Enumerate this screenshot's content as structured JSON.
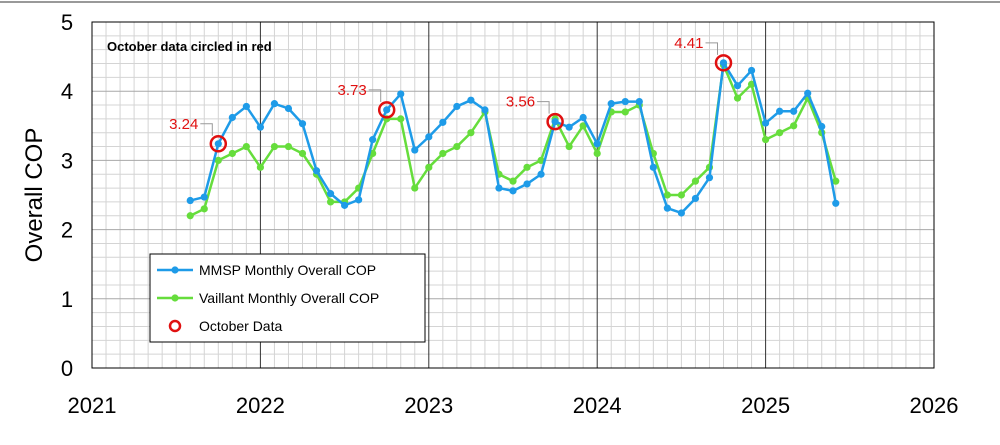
{
  "chart_data": {
    "type": "line",
    "title": "",
    "xlabel": "",
    "ylabel": "Overall COP",
    "xlim": [
      2021,
      2026
    ],
    "ylim": [
      0,
      5
    ],
    "xticks": [
      "2021",
      "2022",
      "2023",
      "2024",
      "2025",
      "2026"
    ],
    "yticks": [
      "0",
      "1",
      "2",
      "3",
      "4",
      "5"
    ],
    "grid": true,
    "legend_position": "lower-left",
    "annotation": "October data circled in red",
    "colors": {
      "mmsp": "#1e9be8",
      "vaillant": "#66dd3c",
      "october": "#e01010",
      "annotation": "#e01010"
    },
    "series": [
      {
        "name": "MMSP Monthly Overall COP",
        "x": [
          "2021-08",
          "2021-09",
          "2021-10",
          "2021-11",
          "2021-12",
          "2022-01",
          "2022-02",
          "2022-03",
          "2022-04",
          "2022-05",
          "2022-06",
          "2022-07",
          "2022-08",
          "2022-09",
          "2022-10",
          "2022-11",
          "2022-12",
          "2023-01",
          "2023-02",
          "2023-03",
          "2023-04",
          "2023-05",
          "2023-06",
          "2023-07",
          "2023-08",
          "2023-09",
          "2023-10",
          "2023-11",
          "2023-12",
          "2024-01",
          "2024-02",
          "2024-03",
          "2024-04",
          "2024-05",
          "2024-06",
          "2024-07",
          "2024-08",
          "2024-09",
          "2024-10",
          "2024-11",
          "2024-12",
          "2025-01",
          "2025-02",
          "2025-03",
          "2025-04",
          "2025-05",
          "2025-06"
        ],
        "values": [
          2.42,
          2.47,
          3.24,
          3.62,
          3.78,
          3.48,
          3.82,
          3.75,
          3.53,
          2.85,
          2.52,
          2.35,
          2.43,
          3.3,
          3.73,
          3.96,
          3.15,
          3.34,
          3.55,
          3.78,
          3.87,
          3.73,
          2.6,
          2.56,
          2.66,
          2.8,
          3.56,
          3.48,
          3.62,
          3.24,
          3.82,
          3.85,
          3.85,
          2.9,
          2.31,
          2.24,
          2.45,
          2.75,
          4.41,
          4.08,
          4.3,
          3.54,
          3.71,
          3.71,
          3.97,
          3.49,
          2.38
        ]
      },
      {
        "name": "Vaillant Monthly Overall COP",
        "x": [
          "2021-08",
          "2021-09",
          "2021-10",
          "2021-11",
          "2021-12",
          "2022-01",
          "2022-02",
          "2022-03",
          "2022-04",
          "2022-05",
          "2022-06",
          "2022-07",
          "2022-08",
          "2022-09",
          "2022-10",
          "2022-11",
          "2022-12",
          "2023-01",
          "2023-02",
          "2023-03",
          "2023-04",
          "2023-05",
          "2023-06",
          "2023-07",
          "2023-08",
          "2023-09",
          "2023-10",
          "2023-11",
          "2023-12",
          "2024-01",
          "2024-02",
          "2024-03",
          "2024-04",
          "2024-05",
          "2024-06",
          "2024-07",
          "2024-08",
          "2024-09",
          "2024-10",
          "2024-11",
          "2024-12",
          "2025-01",
          "2025-02",
          "2025-03",
          "2025-04",
          "2025-05",
          "2025-06"
        ],
        "values": [
          2.2,
          2.3,
          3.0,
          3.1,
          3.2,
          2.9,
          3.2,
          3.2,
          3.1,
          2.8,
          2.4,
          2.4,
          2.6,
          3.1,
          3.6,
          3.6,
          2.6,
          2.9,
          3.1,
          3.2,
          3.4,
          3.7,
          2.8,
          2.7,
          2.9,
          3.0,
          3.6,
          3.2,
          3.5,
          3.1,
          3.7,
          3.7,
          3.8,
          3.1,
          2.5,
          2.5,
          2.7,
          2.9,
          4.38,
          3.9,
          4.1,
          3.3,
          3.4,
          3.5,
          3.9,
          3.4,
          2.7
        ]
      }
    ],
    "october_points": [
      {
        "x": "2021-10",
        "value": 3.24,
        "label": "3.24"
      },
      {
        "x": "2022-10",
        "value": 3.73,
        "label": "3.73"
      },
      {
        "x": "2023-10",
        "value": 3.56,
        "label": "3.56"
      },
      {
        "x": "2024-10",
        "value": 4.41,
        "label": "4.41"
      }
    ],
    "legend": [
      {
        "label": "MMSP Monthly Overall COP",
        "kind": "line-marker",
        "color": "#1e9be8"
      },
      {
        "label": "Vaillant Monthly Overall COP",
        "kind": "line-marker",
        "color": "#66dd3c"
      },
      {
        "label": "October Data",
        "kind": "ring",
        "color": "#e01010"
      }
    ]
  }
}
